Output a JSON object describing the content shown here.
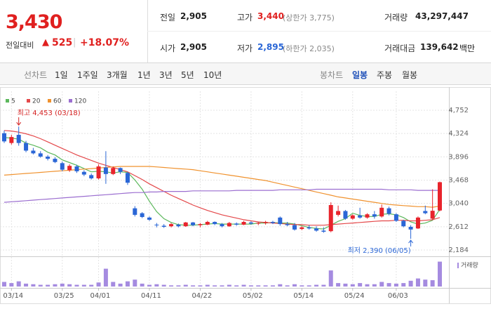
{
  "header": {
    "price": "3,430",
    "change_label": "전일대비",
    "change": "525",
    "change_pct": "+18.07%",
    "stats": [
      {
        "label": "전일",
        "value": "2,905"
      },
      {
        "label": "고가",
        "value": "3,440",
        "note": "(상한가 3,775)"
      },
      {
        "label": "거래량",
        "value": "43,297,447"
      },
      {
        "label": "시가",
        "value": "2,905"
      },
      {
        "label": "저가",
        "value": "2,895",
        "note": "(하한가 2,035)"
      },
      {
        "label": "거래대금",
        "value": "139,642",
        "unit": "백만"
      }
    ]
  },
  "tabs": {
    "line_label": "선차트",
    "line": [
      "1일",
      "1주일",
      "3개월",
      "1년",
      "3년",
      "5년",
      "10년"
    ],
    "candle_label": "봉차트",
    "candle": [
      "일봉",
      "주봉",
      "월봉"
    ]
  },
  "chart_data": {
    "type": "candlestick",
    "up_color": "#e8242c",
    "down_color": "#2a66d6",
    "volume_color": "#a58be0",
    "categories": [
      null,
      "03/14",
      null,
      null,
      null,
      null,
      null,
      null,
      "03/25",
      null,
      null,
      null,
      null,
      "04/01",
      null,
      null,
      null,
      null,
      null,
      null,
      "04/11",
      null,
      null,
      null,
      null,
      null,
      null,
      "04/22",
      null,
      null,
      null,
      null,
      null,
      null,
      "05/02",
      null,
      null,
      null,
      null,
      null,
      null,
      "05/14",
      null,
      null,
      null,
      null,
      null,
      null,
      "05/24",
      null,
      null,
      null,
      null,
      null,
      "06/03",
      null,
      null,
      null,
      null,
      null,
      null
    ],
    "ohlc": [
      [
        4330,
        4380,
        4150,
        4180
      ],
      [
        4150,
        4300,
        4120,
        4260
      ],
      [
        4300,
        4453,
        4100,
        4150
      ],
      [
        4150,
        4190,
        3980,
        4010
      ],
      [
        4010,
        4060,
        3940,
        3960
      ],
      [
        3960,
        4000,
        3880,
        3900
      ],
      [
        3900,
        3930,
        3830,
        3860
      ],
      [
        3860,
        3890,
        3780,
        3800
      ],
      [
        3780,
        3810,
        3630,
        3660
      ],
      [
        3650,
        3760,
        3620,
        3730
      ],
      [
        3720,
        3750,
        3600,
        3630
      ],
      [
        3620,
        3650,
        3540,
        3570
      ],
      [
        3560,
        3590,
        3480,
        3500
      ],
      [
        3500,
        3760,
        3480,
        3720
      ],
      [
        3700,
        4000,
        3400,
        3580
      ],
      [
        3580,
        3720,
        3560,
        3690
      ],
      [
        3690,
        3700,
        3580,
        3620
      ],
      [
        3600,
        3620,
        3380,
        3420
      ],
      [
        2950,
        2990,
        2800,
        2830
      ],
      [
        2860,
        2880,
        2770,
        2790
      ],
      [
        2780,
        2800,
        2720,
        2740
      ],
      [
        2650,
        2680,
        2600,
        2640
      ],
      [
        2630,
        2660,
        2590,
        2610
      ],
      [
        2620,
        2680,
        2600,
        2660
      ],
      [
        2650,
        2670,
        2600,
        2620
      ],
      [
        2620,
        2700,
        2610,
        2690
      ],
      [
        2690,
        2700,
        2620,
        2640
      ],
      [
        2640,
        2680,
        2600,
        2660
      ],
      [
        2650,
        2720,
        2640,
        2700
      ],
      [
        2700,
        2710,
        2640,
        2660
      ],
      [
        2660,
        2680,
        2600,
        2620
      ],
      [
        2620,
        2700,
        2610,
        2680
      ],
      [
        2670,
        2690,
        2630,
        2650
      ],
      [
        2650,
        2720,
        2640,
        2700
      ],
      [
        2690,
        2710,
        2650,
        2670
      ],
      [
        2670,
        2700,
        2640,
        2680
      ],
      [
        2680,
        2720,
        2650,
        2700
      ],
      [
        2700,
        2720,
        2660,
        2680
      ],
      [
        2780,
        2800,
        2630,
        2660
      ],
      [
        2660,
        2700,
        2620,
        2640
      ],
      [
        2640,
        2680,
        2540,
        2560
      ],
      [
        2570,
        2620,
        2550,
        2600
      ],
      [
        2600,
        2640,
        2560,
        2580
      ],
      [
        2580,
        2620,
        2520,
        2540
      ],
      [
        2540,
        2600,
        2500,
        2520
      ],
      [
        2530,
        3060,
        2510,
        3010
      ],
      [
        2830,
        3000,
        2800,
        2900
      ],
      [
        2900,
        2920,
        2740,
        2760
      ],
      [
        2760,
        2840,
        2740,
        2820
      ],
      [
        2820,
        2960,
        2760,
        2780
      ],
      [
        2780,
        2860,
        2760,
        2840
      ],
      [
        2840,
        2900,
        2760,
        2800
      ],
      [
        2800,
        3020,
        2780,
        2960
      ],
      [
        2950,
        2980,
        2820,
        2850
      ],
      [
        2840,
        2860,
        2700,
        2720
      ],
      [
        2720,
        2740,
        2600,
        2620
      ],
      [
        2610,
        2640,
        2390,
        2560
      ],
      [
        2580,
        2800,
        2570,
        2780
      ],
      [
        2900,
        3000,
        2840,
        2860
      ],
      [
        2760,
        3300,
        2740,
        2905
      ],
      [
        2910,
        3440,
        2895,
        3430
      ]
    ],
    "volume": [
      8000000,
      6000000,
      9000000,
      5000000,
      4000000,
      3000000,
      3000000,
      4000000,
      5000000,
      4000000,
      3000000,
      3000000,
      3000000,
      7000000,
      31000000,
      8000000,
      5000000,
      9000000,
      12000000,
      5000000,
      3000000,
      4000000,
      3000000,
      2000000,
      2000000,
      3000000,
      2000000,
      2000000,
      3000000,
      2000000,
      2000000,
      3000000,
      2000000,
      3000000,
      2000000,
      2000000,
      2000000,
      2000000,
      4000000,
      2000000,
      4000000,
      2000000,
      2000000,
      3000000,
      3000000,
      28000000,
      6000000,
      5000000,
      4000000,
      6000000,
      4000000,
      4000000,
      8000000,
      6000000,
      5000000,
      6000000,
      10000000,
      14000000,
      12000000,
      11000000,
      43297447
    ],
    "volume_ylim": [
      0,
      44000000
    ],
    "volume_label": "거래량",
    "series": [
      {
        "name": "5",
        "color": "#5cb85c",
        "values": [
          4250,
          4240,
          4220,
          4150,
          4110,
          4060,
          3980,
          3930,
          3840,
          3790,
          3740,
          3680,
          3620,
          3630,
          3620,
          3600,
          3620,
          3610,
          3470,
          3300,
          3080,
          2890,
          2760,
          2690,
          2650,
          2640,
          2640,
          2650,
          2660,
          2670,
          2660,
          2660,
          2660,
          2660,
          2660,
          2680,
          2680,
          2690,
          2680,
          2680,
          2660,
          2630,
          2600,
          2580,
          2570,
          2640,
          2710,
          2760,
          2860,
          2820,
          2800,
          2800,
          2840,
          2850,
          2830,
          2780,
          2700,
          2660,
          2680,
          2730,
          2930
        ]
      },
      {
        "name": "20",
        "color": "#e4484a",
        "values": [
          4380,
          4370,
          4350,
          4320,
          4280,
          4230,
          4170,
          4110,
          4050,
          3990,
          3930,
          3880,
          3830,
          3780,
          3740,
          3700,
          3660,
          3620,
          3550,
          3480,
          3400,
          3330,
          3260,
          3190,
          3130,
          3070,
          3010,
          2960,
          2910,
          2870,
          2830,
          2800,
          2770,
          2740,
          2720,
          2700,
          2690,
          2680,
          2670,
          2660,
          2650,
          2650,
          2640,
          2640,
          2640,
          2650,
          2660,
          2670,
          2680,
          2690,
          2700,
          2710,
          2720,
          2720,
          2730,
          2730,
          2720,
          2720,
          2730,
          2740,
          2780
        ]
      },
      {
        "name": "60",
        "color": "#f0922e",
        "values": [
          3560,
          3570,
          3580,
          3590,
          3600,
          3610,
          3620,
          3630,
          3640,
          3650,
          3660,
          3670,
          3680,
          3690,
          3700,
          3710,
          3720,
          3720,
          3720,
          3720,
          3720,
          3710,
          3700,
          3690,
          3680,
          3670,
          3660,
          3640,
          3620,
          3600,
          3580,
          3560,
          3540,
          3520,
          3500,
          3480,
          3460,
          3430,
          3400,
          3370,
          3340,
          3310,
          3280,
          3250,
          3220,
          3190,
          3160,
          3140,
          3120,
          3100,
          3080,
          3060,
          3040,
          3020,
          3010,
          3000,
          2990,
          2980,
          2980,
          2970,
          2990
        ]
      },
      {
        "name": "120",
        "color": "#9b6ed0",
        "values": [
          3060,
          3070,
          3080,
          3090,
          3100,
          3110,
          3120,
          3130,
          3140,
          3150,
          3160,
          3170,
          3180,
          3190,
          3200,
          3210,
          3220,
          3230,
          3240,
          3240,
          3250,
          3250,
          3260,
          3260,
          3260,
          3260,
          3270,
          3270,
          3270,
          3270,
          3270,
          3270,
          3280,
          3280,
          3280,
          3280,
          3280,
          3280,
          3290,
          3290,
          3290,
          3290,
          3290,
          3300,
          3300,
          3300,
          3300,
          3300,
          3300,
          3300,
          3300,
          3300,
          3300,
          3290,
          3290,
          3290,
          3290,
          3280,
          3280,
          3280,
          3280
        ]
      }
    ],
    "ylim": [
      2184,
      4752
    ],
    "yticks": [
      {
        "value": 2184,
        "label": "2,184"
      },
      {
        "value": 2612,
        "label": "2,612"
      },
      {
        "value": 3040,
        "label": "3,040"
      },
      {
        "value": 3468,
        "label": "3,468"
      },
      {
        "value": 3896,
        "label": "3,896"
      },
      {
        "value": 4324,
        "label": "4,324"
      },
      {
        "value": 4752,
        "label": "4,752"
      }
    ],
    "grid": true,
    "annotations": [
      {
        "kind": "high",
        "text": "최고 4,453 (03/18)",
        "color": "#d42020"
      },
      {
        "kind": "low",
        "text": "최저 2,390 (06/05)",
        "color": "#2a66d6"
      }
    ]
  }
}
